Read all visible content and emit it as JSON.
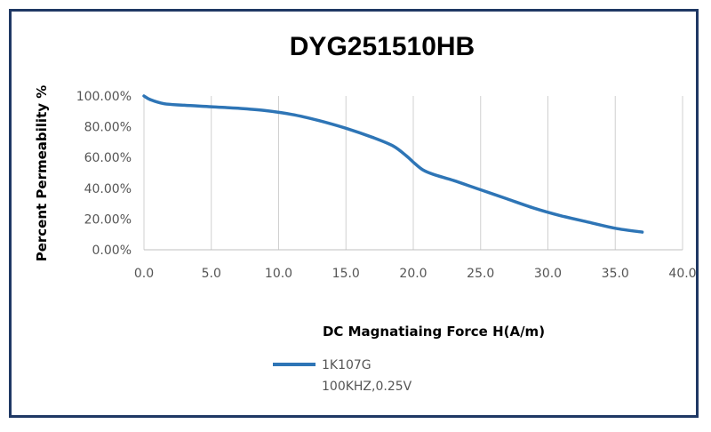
{
  "chart_data": {
    "type": "line",
    "title": "DYG251510HB",
    "xlabel": "DC Magnatiaing Force H(A/m)",
    "ylabel": "Percent Permeability %",
    "xlim": [
      0,
      40
    ],
    "ylim": [
      0,
      100
    ],
    "x_ticks": [
      "0.0",
      "5.0",
      "10.0",
      "15.0",
      "20.0",
      "25.0",
      "30.0",
      "35.0",
      "40.0"
    ],
    "y_ticks": [
      "0.00%",
      "20.00%",
      "40.00%",
      "60.00%",
      "80.00%",
      "100.00%"
    ],
    "grid": "vertical",
    "legend_position": "bottom-left",
    "series": [
      {
        "name": "1K107G",
        "color": "#2e75b6",
        "x": [
          0,
          0.5,
          1.5,
          3,
          5,
          7,
          9,
          11,
          13,
          15,
          17,
          18.5,
          19.5,
          20,
          20.7,
          21.5,
          23,
          25,
          27,
          29,
          31,
          33,
          35,
          37
        ],
        "y": [
          100,
          97.5,
          95,
          94,
          93,
          92,
          90.5,
          88,
          84,
          79,
          73,
          67.5,
          61,
          57,
          52,
          49,
          45,
          39,
          33,
          27,
          22,
          18,
          14,
          11.5
        ]
      }
    ]
  },
  "legend": {
    "label": "1K107G",
    "note": "100KHZ,0.25V"
  }
}
